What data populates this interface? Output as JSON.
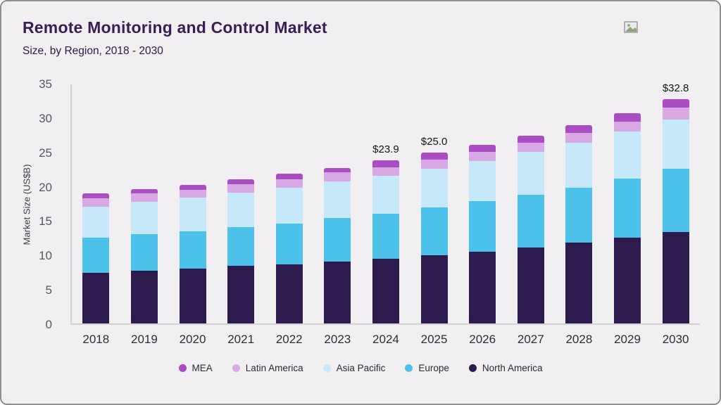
{
  "header": {
    "title": "Remote Monitoring and Control Market",
    "subtitle": "Size, by Region, 2018 - 2030"
  },
  "chart_data": {
    "type": "bar",
    "stacked": true,
    "title": "Remote Monitoring and Control Market",
    "subtitle": "Size, by Region, 2018 - 2030",
    "xlabel": "",
    "ylabel": "Market Size (US$B)",
    "ylim": [
      0,
      35
    ],
    "yticks": [
      0,
      5,
      10,
      15,
      20,
      25,
      30,
      35
    ],
    "grid": false,
    "legend_position": "bottom",
    "categories": [
      "2018",
      "2019",
      "2020",
      "2021",
      "2022",
      "2023",
      "2024",
      "2025",
      "2026",
      "2027",
      "2028",
      "2029",
      "2030"
    ],
    "series": [
      {
        "name": "North America",
        "color": "#2d1b4e",
        "values": [
          7.4,
          7.7,
          8.0,
          8.4,
          8.7,
          9.1,
          9.5,
          10.0,
          10.5,
          11.1,
          11.8,
          12.6,
          13.4
        ]
      },
      {
        "name": "Europe",
        "color": "#4cc2ea",
        "values": [
          5.2,
          5.4,
          5.5,
          5.7,
          5.9,
          6.3,
          6.6,
          7.0,
          7.4,
          7.7,
          8.1,
          8.6,
          9.2
        ]
      },
      {
        "name": "Asia Pacific",
        "color": "#c7e8f9",
        "values": [
          4.5,
          4.7,
          4.9,
          5.1,
          5.3,
          5.4,
          5.5,
          5.7,
          5.9,
          6.3,
          6.6,
          6.9,
          7.3
        ]
      },
      {
        "name": "Latin America",
        "color": "#d9a9e6",
        "values": [
          1.2,
          1.2,
          1.2,
          1.2,
          1.2,
          1.3,
          1.3,
          1.3,
          1.3,
          1.4,
          1.4,
          1.5,
          1.7
        ]
      },
      {
        "name": "MEA",
        "color": "#aa4cc2",
        "values": [
          0.8,
          0.7,
          0.7,
          0.7,
          0.8,
          0.7,
          1.0,
          1.0,
          1.0,
          1.0,
          1.1,
          1.2,
          1.2
        ]
      }
    ],
    "totals": [
      19.1,
      19.7,
      20.3,
      21.1,
      21.9,
      22.8,
      23.9,
      25.0,
      26.1,
      27.5,
      29.0,
      30.8,
      32.8
    ],
    "annotations": [
      {
        "category": "2024",
        "text": "$23.9"
      },
      {
        "category": "2025",
        "text": "$25.0"
      },
      {
        "category": "2030",
        "text": "$32.8"
      }
    ]
  },
  "legend": {
    "items": [
      {
        "label": "MEA",
        "color": "#aa4cc2"
      },
      {
        "label": "Latin America",
        "color": "#d9a9e6"
      },
      {
        "label": "Asia Pacific",
        "color": "#c7e8f9"
      },
      {
        "label": "Europe",
        "color": "#4cc2ea"
      },
      {
        "label": "North America",
        "color": "#2d1b4e"
      }
    ]
  },
  "colors": {
    "canvas_bg": "#f1eff2",
    "border": "#8f8f94",
    "title_text": "#3a1d54",
    "axis_line": "#d2d2d6",
    "tick_text": "#565660",
    "annotation_text": "#141418"
  }
}
